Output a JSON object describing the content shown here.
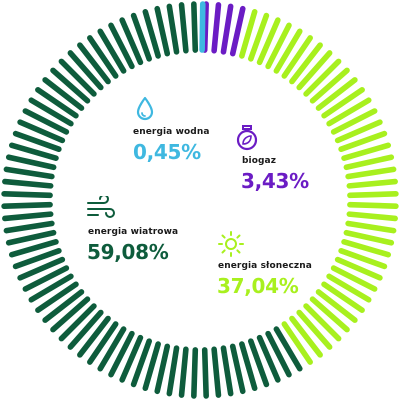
{
  "chart_data": {
    "type": "pie",
    "style": "radial ticks donut",
    "slices": [
      {
        "name": "energia wodna",
        "value": 0.45,
        "display": "0,45%",
        "color": "#3fb8e0",
        "icon": "water-drop-icon"
      },
      {
        "name": "biogaz",
        "value": 3.43,
        "display": "3,43%",
        "color": "#6b1cc4",
        "icon": "biogas-flask-icon"
      },
      {
        "name": "energia słoneczna",
        "value": 37.04,
        "display": "37,04%",
        "color": "#a8f01e",
        "icon": "sun-icon"
      },
      {
        "name": "energia wiatrowa",
        "value": 59.08,
        "display": "59,08%",
        "color": "#0e5c3c",
        "icon": "wind-icon"
      }
    ],
    "legend": "none"
  }
}
